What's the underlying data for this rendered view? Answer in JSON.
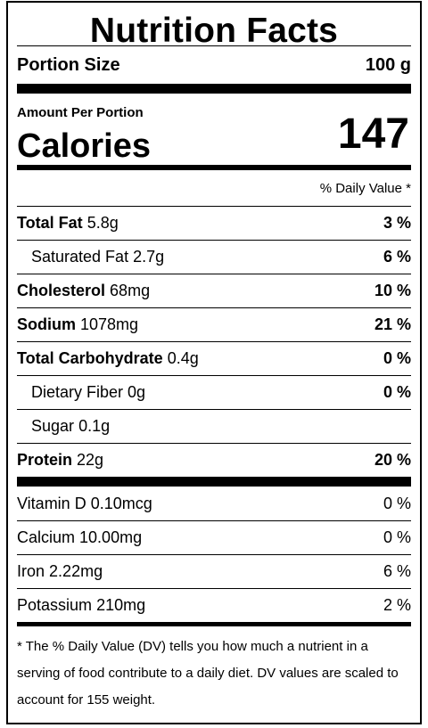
{
  "title": "Nutrition Facts",
  "portion": {
    "label": "Portion Size",
    "value": "100 g"
  },
  "amount_per_portion": "Amount Per Portion",
  "calories": {
    "label": "Calories",
    "value": "147"
  },
  "daily_value_header": "% Daily Value *",
  "nutrients": [
    {
      "name": "Total Fat",
      "amount": "5.8g",
      "dv": "3 %"
    },
    {
      "name": "Saturated Fat",
      "amount": "2.7g",
      "dv": "6 %"
    },
    {
      "name": "Cholesterol",
      "amount": "68mg",
      "dv": "10 %"
    },
    {
      "name": "Sodium",
      "amount": "1078mg",
      "dv": "21 %"
    },
    {
      "name": "Total Carbohydrate",
      "amount": "0.4g",
      "dv": "0 %"
    },
    {
      "name": "Dietary Fiber",
      "amount": "0g",
      "dv": "0 %"
    },
    {
      "name": "Sugar",
      "amount": "0.1g",
      "dv": ""
    },
    {
      "name": "Protein",
      "amount": "22g",
      "dv": "20 %"
    }
  ],
  "vitamins": [
    {
      "name": "Vitamin D",
      "amount": "0.10mcg",
      "dv": "0 %"
    },
    {
      "name": "Calcium",
      "amount": "10.00mg",
      "dv": "0 %"
    },
    {
      "name": "Iron",
      "amount": "2.22mg",
      "dv": "6 %"
    },
    {
      "name": "Potassium",
      "amount": "210mg",
      "dv": "2 %"
    }
  ],
  "footnote": "* The % Daily Value (DV) tells you how much a nutrient in a serving of food contribute to a daily diet. DV values are scaled to account for 155 weight."
}
